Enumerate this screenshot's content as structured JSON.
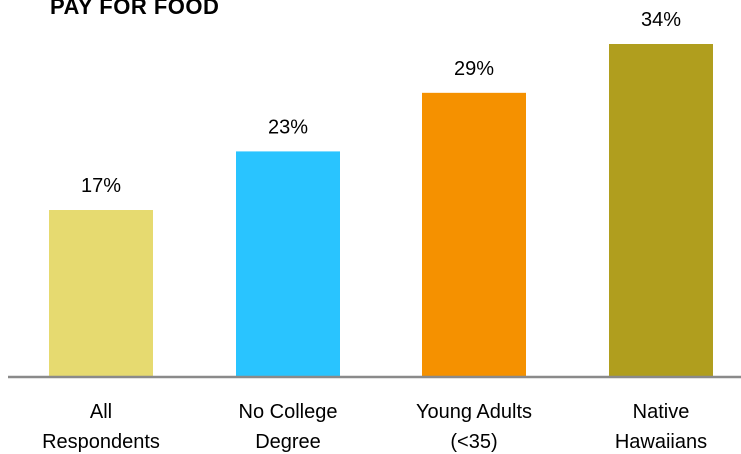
{
  "chart_data": {
    "type": "bar",
    "title": "PAY FOR FOOD",
    "categories": [
      [
        "All",
        "Respondents"
      ],
      [
        "No College",
        "Degree"
      ],
      [
        "Young Adults",
        "(<35)"
      ],
      [
        "Native",
        "Hawaiians"
      ]
    ],
    "values": [
      17,
      23,
      29,
      34
    ],
    "value_labels": [
      "17%",
      "23%",
      "29%",
      "34%"
    ],
    "colors": [
      "#E6DA70",
      "#29C4FF",
      "#F59100",
      "#B09E1E"
    ],
    "ylim": [
      0,
      34
    ],
    "grid": false,
    "legend": "none"
  }
}
